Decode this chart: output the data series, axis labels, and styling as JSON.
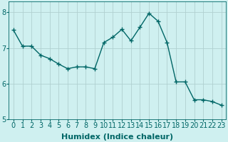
{
  "x": [
    0,
    1,
    2,
    3,
    4,
    5,
    6,
    7,
    8,
    9,
    10,
    11,
    12,
    13,
    14,
    15,
    16,
    17,
    18,
    19,
    20,
    21,
    22,
    23
  ],
  "y": [
    7.5,
    7.05,
    7.05,
    6.8,
    6.7,
    6.55,
    6.42,
    6.47,
    6.47,
    6.42,
    7.15,
    7.3,
    7.52,
    7.2,
    7.58,
    7.97,
    7.75,
    7.15,
    6.05,
    6.05,
    5.55,
    5.55,
    5.5,
    5.4
  ],
  "line_color": "#006666",
  "marker": "+",
  "marker_size": 4,
  "marker_color": "#006666",
  "bg_color": "#cff0f0",
  "grid_color": "#b0d0d0",
  "xlabel": "Humidex (Indice chaleur)",
  "ylim": [
    5,
    8.3
  ],
  "xlim": [
    -0.5,
    23.5
  ],
  "yticks": [
    5,
    6,
    7,
    8
  ],
  "xticks": [
    0,
    1,
    2,
    3,
    4,
    5,
    6,
    7,
    8,
    9,
    10,
    11,
    12,
    13,
    14,
    15,
    16,
    17,
    18,
    19,
    20,
    21,
    22,
    23
  ],
  "tick_color": "#006666",
  "label_color": "#006666",
  "xlabel_fontsize": 8,
  "tick_fontsize": 7,
  "linewidth": 1.0
}
